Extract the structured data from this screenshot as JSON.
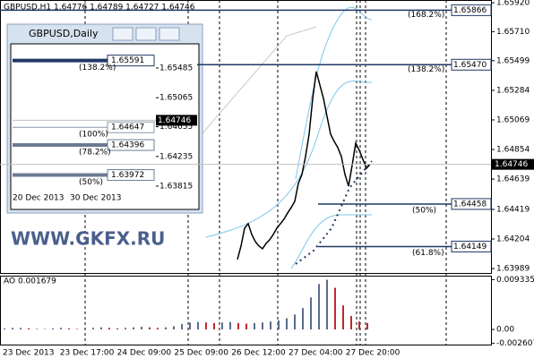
{
  "main": {
    "header": "GBPUSD,H1  1.64776 1.64789 1.64727 1.64746",
    "ylim": [
      1.63957,
      1.6594
    ],
    "yticks": [
      {
        "value": 1.6592,
        "label": "1.65920"
      },
      {
        "value": 1.6571,
        "label": "1.65710"
      },
      1.65499,
      1.65284,
      1.65069,
      1.64854,
      1.64639,
      1.64419,
      1.64204,
      1.63989
    ],
    "closes": [
      1.64055,
      1.64153,
      1.64283,
      1.64315,
      1.64237,
      1.64185,
      1.64153,
      1.64133,
      1.64172,
      1.64198,
      1.64237,
      1.64283,
      1.64315,
      1.64348,
      1.64393,
      1.64432,
      1.64478,
      1.64608,
      1.64673,
      1.64803,
      1.64965,
      1.65225,
      1.6542,
      1.65323,
      1.65225,
      1.65095,
      1.64965,
      1.64913,
      1.64868,
      1.64803,
      1.64673,
      1.64588,
      1.64738,
      1.649,
      1.64848,
      1.64783,
      1.64718,
      1.64746
    ],
    "line_color": "#000000",
    "bid": 1.64746,
    "level_color": "#1f3864",
    "levels": [
      {
        "price": 1.65866,
        "ratio": "(168.2%)"
      },
      {
        "price": {
          "value": 1.6547,
          "label": "1.65470"
        },
        "ratio": "(138.2%)"
      },
      {
        "price": 1.64458,
        "ratio": "(50%)"
      },
      {
        "price": 1.64149,
        "ratio": "(61.8%)"
      }
    ],
    "watermark": "WWW.GKFX.RU"
  },
  "inset": {
    "title": "GBPUSD,Daily",
    "ylim": [
      1.63726,
      1.65814
    ],
    "yticks": [
      1.65485,
      1.65065,
      1.64655,
      1.64235,
      1.63815
    ],
    "levels": [
      {
        "price": 1.65591,
        "ratio": "(138.2%)",
        "color": "#1f3864"
      },
      {
        "price": 1.64647,
        "ratio": "(100%)",
        "color": "#8a96a8"
      },
      {
        "price": 1.64396,
        "ratio": "(78.2%)",
        "color": "#6d7a92"
      },
      {
        "price": 1.63972,
        "ratio": "(50%)",
        "color": "#6d7a92"
      }
    ],
    "xlabels": [
      "20 Dec 2013",
      "30 Dec 2013"
    ]
  },
  "ao": {
    "header": "AO 0.001679",
    "ylim": [
      -0.003,
      0.0099
    ],
    "yticks": [
      0.009335,
      {
        "value": 0,
        "label": "0.00"
      },
      -0.002607
    ],
    "up_color": "#5b6b8a",
    "down_color": "#c0282c",
    "values": [
      0.0002,
      0.0003,
      0.0003,
      0.0002,
      0.0001,
      0.0001,
      0.0002,
      0.0003,
      0.0002,
      0.0001,
      0.0002,
      0.0003,
      0.0004,
      0.0003,
      0.0002,
      0.0003,
      0.0004,
      0.0005,
      0.0004,
      0.0003,
      0.0004,
      0.0006,
      0.001,
      0.0013,
      0.0014,
      0.0013,
      0.0012,
      0.0013,
      0.0014,
      0.0012,
      0.0011,
      0.0012,
      0.0013,
      0.0015,
      0.0017,
      0.0021,
      0.0028,
      0.004,
      0.006,
      0.0085,
      0.0093,
      0.0078,
      0.0045,
      0.0025,
      0.0015,
      0.0012
    ]
  },
  "xlabels": [
    "23 Dec 2013",
    "23 Dec 17:00",
    "24 Dec 09:00",
    "25 Dec 09:00",
    "26 Dec 12:00",
    "27 Dec 04:00",
    "27 Dec 20:00"
  ]
}
